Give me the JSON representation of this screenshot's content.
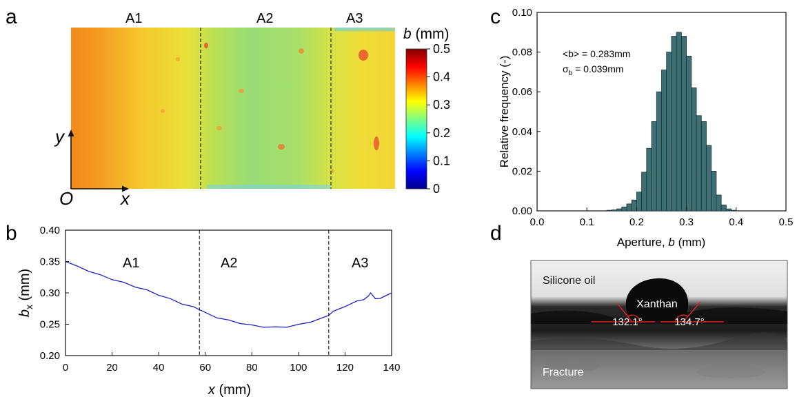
{
  "panels": {
    "a": {
      "label": "a",
      "regions": [
        "A1",
        "A2",
        "A3"
      ],
      "colorbar": {
        "title_var": "b",
        "title_unit": " (mm)",
        "ticks": [
          "0.5",
          "0.4",
          "0.3",
          "0.2",
          "0.1",
          "0"
        ],
        "range": [
          0,
          0.5
        ],
        "colormap": "jet"
      },
      "axis_y": "y",
      "axis_x": "x",
      "origin": "O"
    },
    "b": {
      "label": "b",
      "regions": [
        "A1",
        "A2",
        "A3"
      ],
      "xlabel_var": "x",
      "xlabel_unit": " (mm)",
      "ylabel_var": "b",
      "ylabel_sub": "x",
      "ylabel_unit": " (mm)",
      "xticks": [
        "0",
        "20",
        "40",
        "60",
        "80",
        "100",
        "120",
        "140"
      ],
      "yticks": [
        "0.20",
        "0.25",
        "0.30",
        "0.35",
        "0.40"
      ]
    },
    "c": {
      "label": "c",
      "xlabel_text": "Aperture, ",
      "xlabel_var": "b",
      "xlabel_unit": " (mm)",
      "ylabel": "Relative frequency (-)",
      "xticks": [
        "0.0",
        "0.1",
        "0.2",
        "0.3",
        "0.4",
        "0.5"
      ],
      "yticks": [
        "0.00",
        "0.02",
        "0.04",
        "0.06",
        "0.08",
        "0.10"
      ],
      "annotation1": "<b> = 0.283mm",
      "annotation2_sym": "σ",
      "annotation2_sub": "b",
      "annotation2_val": " = 0.039mm"
    },
    "d": {
      "label": "d",
      "oil_label": "Silicone oil",
      "drop_label": "Xanthan",
      "angle_left": "132.1°",
      "angle_right": "134.7°",
      "fracture_label": "Fracture"
    }
  },
  "chart_data": [
    {
      "panel": "b",
      "type": "line",
      "xlim": [
        0,
        140
      ],
      "ylim": [
        0.2,
        0.4
      ],
      "dividers_x": [
        57.5,
        113
      ],
      "series": [
        {
          "color": "#1f1fbf",
          "x": [
            0,
            5,
            10,
            15,
            20,
            25,
            30,
            35,
            40,
            45,
            50,
            55,
            57,
            60,
            65,
            70,
            75,
            80,
            85,
            90,
            95,
            100,
            105,
            110,
            113,
            115,
            120,
            125,
            128,
            130,
            131,
            133,
            135,
            140
          ],
          "y": [
            0.35,
            0.342,
            0.335,
            0.328,
            0.322,
            0.316,
            0.31,
            0.304,
            0.297,
            0.29,
            0.283,
            0.277,
            0.275,
            0.268,
            0.261,
            0.256,
            0.252,
            0.248,
            0.246,
            0.245,
            0.246,
            0.249,
            0.254,
            0.259,
            0.265,
            0.27,
            0.279,
            0.286,
            0.29,
            0.294,
            0.301,
            0.29,
            0.292,
            0.3
          ]
        }
      ]
    },
    {
      "panel": "c",
      "type": "bar",
      "bar_color": "#3d6f73",
      "xlim": [
        0,
        0.5
      ],
      "ylim": [
        0,
        0.1
      ],
      "bin_width": 0.01,
      "bin_left_edges": [
        0.14,
        0.15,
        0.16,
        0.17,
        0.18,
        0.19,
        0.2,
        0.21,
        0.22,
        0.23,
        0.24,
        0.25,
        0.26,
        0.27,
        0.28,
        0.29,
        0.3,
        0.31,
        0.32,
        0.33,
        0.34,
        0.35,
        0.36,
        0.37,
        0.38,
        0.39
      ],
      "values": [
        0.0003,
        0.0005,
        0.001,
        0.002,
        0.0035,
        0.0055,
        0.0095,
        0.0195,
        0.0315,
        0.045,
        0.06,
        0.071,
        0.08,
        0.088,
        0.09,
        0.088,
        0.078,
        0.062,
        0.048,
        0.045,
        0.033,
        0.02,
        0.008,
        0.003,
        0.001,
        0.0003
      ]
    }
  ]
}
